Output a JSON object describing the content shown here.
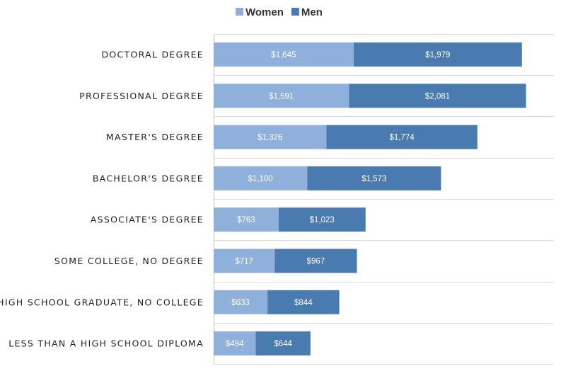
{
  "chart_data": {
    "type": "bar",
    "orientation": "horizontal",
    "stacked": true,
    "categories": [
      "DOCTORAL DEGREE",
      "PROFESSIONAL DEGREE",
      "MASTER'S DEGREE",
      "BACHELOR'S DEGREE",
      "ASSOCIATE'S DEGREE",
      "SOME COLLEGE, NO DEGREE",
      "HIGH SCHOOL GRADUATE, NO COLLEGE",
      "LESS THAN A HIGH SCHOOL DIPLOMA"
    ],
    "series": [
      {
        "name": "Women",
        "color": "#8eb0da",
        "values": [
          1645,
          1591,
          1326,
          1100,
          763,
          717,
          633,
          494
        ],
        "labels": [
          "$1,645",
          "$1,591",
          "$1,326",
          "$1,100",
          "$763",
          "$717",
          "$633",
          "$494"
        ]
      },
      {
        "name": "Men",
        "color": "#4a7bb0",
        "values": [
          1979,
          2081,
          1774,
          1573,
          1023,
          967,
          844,
          644
        ],
        "labels": [
          "$1,979",
          "$2,081",
          "$1,774",
          "$1,573",
          "$1,023",
          "$967",
          "$844",
          "$644"
        ]
      }
    ],
    "xlim": [
      0,
      4000
    ],
    "grid": true,
    "legend": "top-center",
    "title": "",
    "xlabel": "",
    "ylabel": ""
  }
}
